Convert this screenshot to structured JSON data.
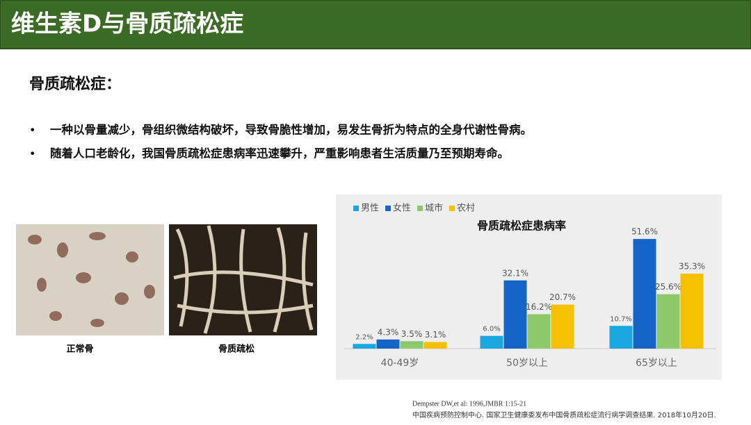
{
  "header": {
    "title": "维生素D与骨质疏松症"
  },
  "section": {
    "heading": "骨质疏松症：",
    "bullets": [
      "一种以骨量减少，骨组织微结构破坏，导致骨脆性增加，易发生骨折为特点的全身代谢性骨病。",
      "随着人口老龄化，我国骨质疏松症患病率迅速攀升，严重影响患者生活质量乃至预期寿命。"
    ]
  },
  "images": [
    {
      "caption": "正常骨"
    },
    {
      "caption": "骨质疏松"
    }
  ],
  "chart_data": {
    "type": "bar",
    "title": "骨质疏松症患病率",
    "categories": [
      "40-49岁",
      "50岁以上",
      "65岁以上"
    ],
    "series": [
      {
        "name": "男性",
        "color": "#1aa7e0",
        "values": [
          2.2,
          6.0,
          10.7
        ],
        "value_labels": [
          "2.2%",
          "6.0%",
          "10.7%"
        ]
      },
      {
        "name": "女性",
        "color": "#1565c8",
        "values": [
          4.3,
          32.1,
          51.6
        ],
        "value_labels": [
          "4.3%",
          "32.1%",
          "51.6%"
        ]
      },
      {
        "name": "城市",
        "color": "#8cc96a",
        "values": [
          3.5,
          16.2,
          25.6
        ],
        "value_labels": [
          "3.5%",
          "16.2%",
          "25.6%"
        ]
      },
      {
        "name": "农村",
        "color": "#f5c000",
        "values": [
          3.1,
          20.7,
          35.3
        ],
        "value_labels": [
          "3.1%",
          "20.7%",
          "35.3%"
        ]
      }
    ]
  },
  "references": [
    "Dempster DW,et al: 1996,JMBR 1:15-21",
    "中国疾病预防控制中心. 国家卫生健康委发布中国骨质疏松症流行病学调查结果. 2018年10月20日."
  ]
}
